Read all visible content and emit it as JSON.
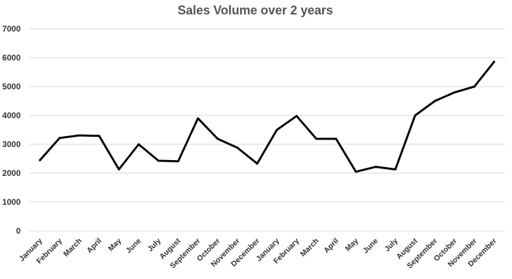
{
  "chart_data": {
    "type": "line",
    "title": "Sales Volume over 2 years",
    "xlabel": "",
    "ylabel": "",
    "ylim": [
      0,
      7000
    ],
    "yticks": [
      0,
      1000,
      2000,
      3000,
      4000,
      5000,
      6000,
      7000
    ],
    "grid": true,
    "legend": "none",
    "categories": [
      "January",
      "February",
      "March",
      "April",
      "May",
      "June",
      "July",
      "August",
      "September",
      "October",
      "November",
      "December",
      "January",
      "February",
      "March",
      "April",
      "May",
      "June",
      "July",
      "August",
      "September",
      "October",
      "November",
      "December"
    ],
    "series": [
      {
        "color": "#000000",
        "values": [
          2450,
          3220,
          3310,
          3290,
          2130,
          3000,
          2430,
          2410,
          3900,
          3190,
          2880,
          2330,
          3500,
          3980,
          3190,
          3190,
          2050,
          2220,
          2130,
          4000,
          4500,
          4800,
          5000,
          5860
        ]
      }
    ]
  }
}
